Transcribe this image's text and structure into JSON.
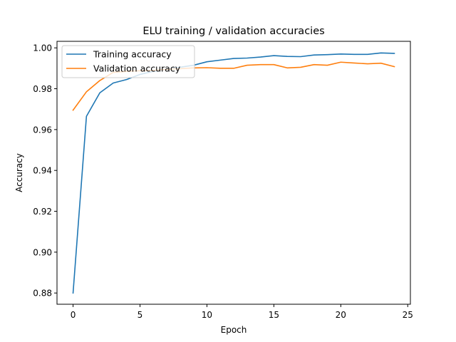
{
  "chart_data": {
    "type": "line",
    "title": "ELU training / validation accuracies",
    "xlabel": "Epoch",
    "ylabel": "Accuracy",
    "xlim": [
      -1.2,
      25.2
    ],
    "ylim": [
      0.8745,
      1.0032
    ],
    "xticks": [
      0,
      5,
      10,
      15,
      20,
      25
    ],
    "yticks": [
      0.88,
      0.9,
      0.92,
      0.94,
      0.96,
      0.98,
      1.0
    ],
    "xtick_labels": [
      "0",
      "5",
      "10",
      "15",
      "20",
      "25"
    ],
    "ytick_labels": [
      "0.88",
      "0.90",
      "0.92",
      "0.94",
      "0.96",
      "0.98",
      "1.00"
    ],
    "grid": false,
    "legend_position": "top-left",
    "x": [
      0,
      1,
      2,
      3,
      4,
      5,
      6,
      7,
      8,
      9,
      10,
      11,
      12,
      13,
      14,
      15,
      16,
      17,
      18,
      19,
      20,
      21,
      22,
      23,
      24
    ],
    "series": [
      {
        "name": "Training accuracy",
        "color": "#1f77b4",
        "values": [
          0.88,
          0.9665,
          0.978,
          0.9828,
          0.9845,
          0.987,
          0.9885,
          0.9895,
          0.9905,
          0.9915,
          0.9932,
          0.994,
          0.9948,
          0.995,
          0.9955,
          0.9962,
          0.9958,
          0.9957,
          0.9965,
          0.9967,
          0.997,
          0.9968,
          0.9968,
          0.9975,
          0.9973
        ]
      },
      {
        "name": "Validation accuracy",
        "color": "#ff7f0e",
        "values": [
          0.9695,
          0.9785,
          0.984,
          0.988,
          0.9885,
          0.9888,
          0.989,
          0.9895,
          0.9898,
          0.9902,
          0.9903,
          0.99,
          0.99,
          0.9915,
          0.9918,
          0.9918,
          0.9902,
          0.9905,
          0.9918,
          0.9915,
          0.993,
          0.9926,
          0.9922,
          0.9925,
          0.9908
        ]
      }
    ]
  }
}
